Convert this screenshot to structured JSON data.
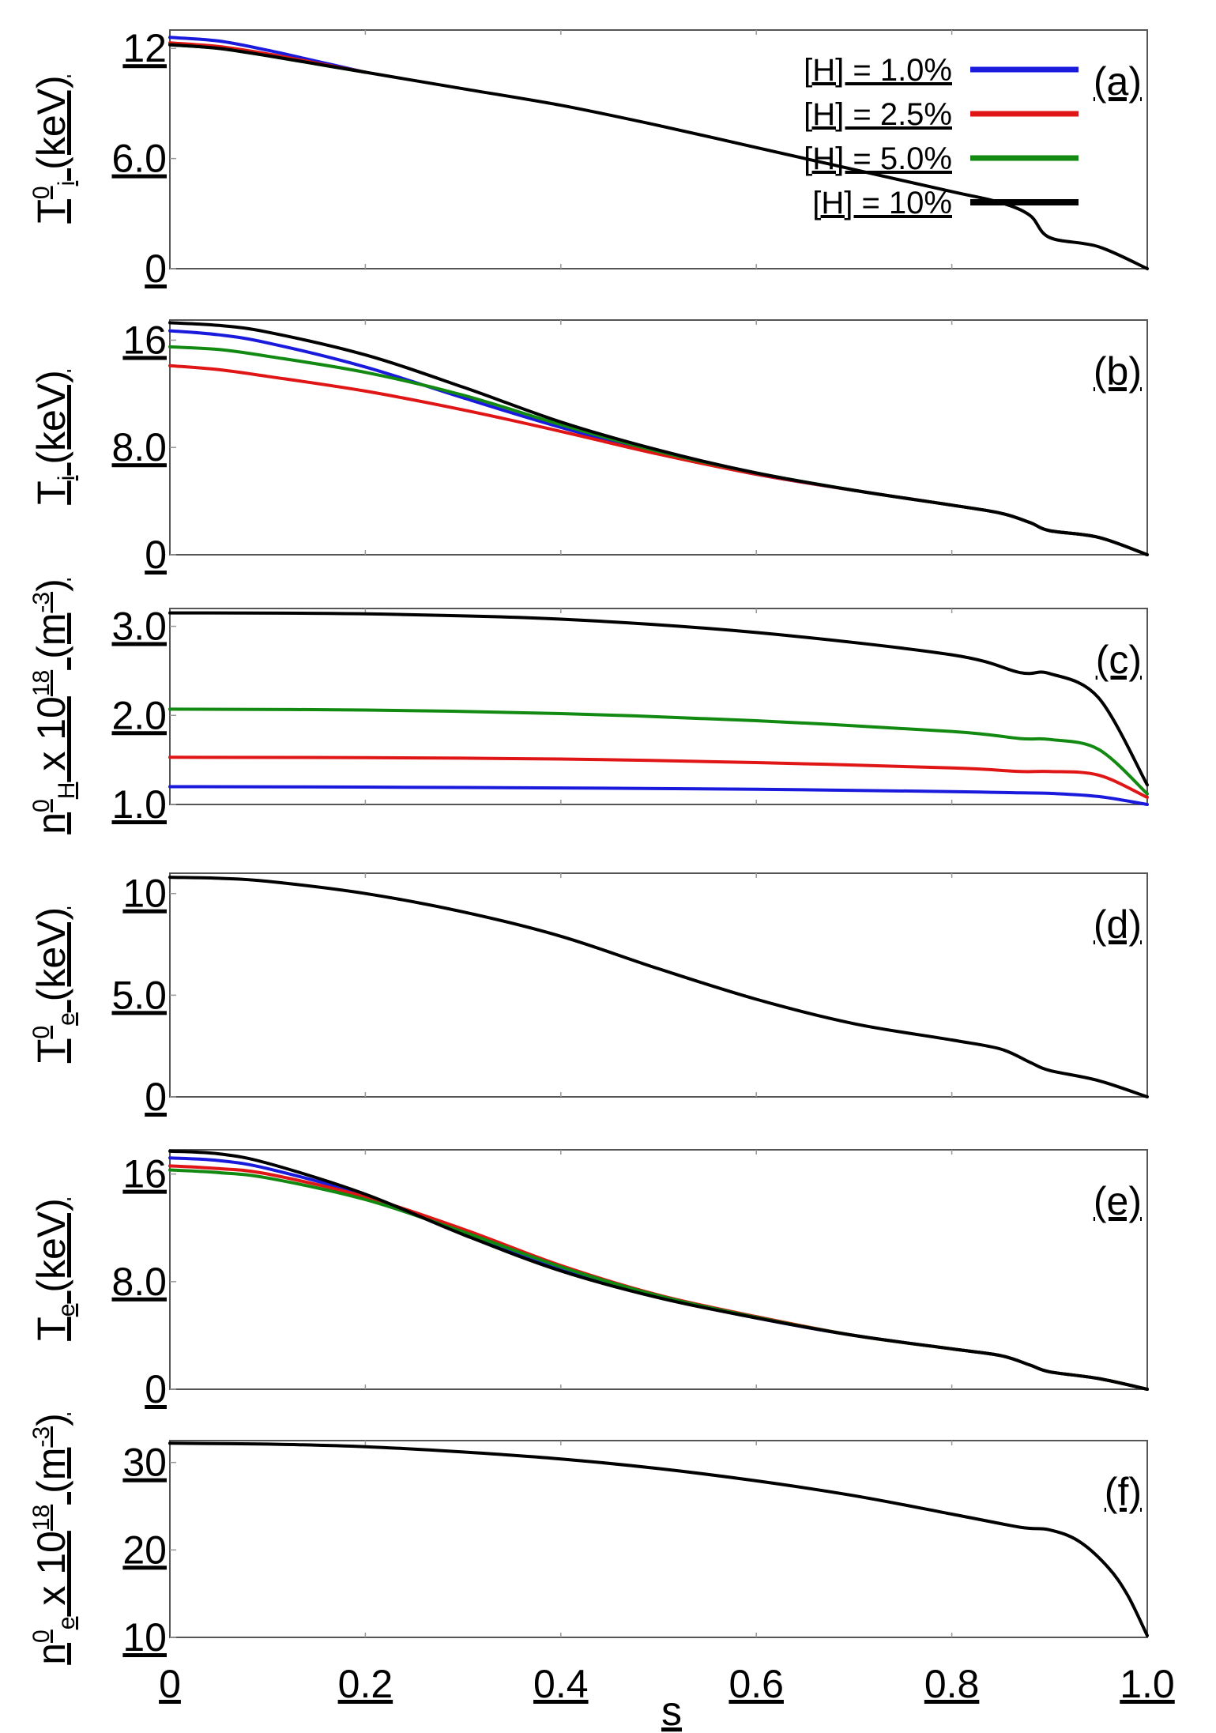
{
  "colors": {
    "blue": "#1a1add",
    "red": "#e01515",
    "green": "#128a12",
    "black": "#000000"
  },
  "x_axis": {
    "label": "s",
    "ticks": [
      "0",
      "0.2",
      "0.4",
      "0.6",
      "0.8",
      "1.0"
    ],
    "values": [
      0,
      0.2,
      0.4,
      0.6,
      0.8,
      1.0
    ]
  },
  "chart_data": [
    {
      "panel": "(a)",
      "type": "line",
      "ylabel": {
        "main": "T",
        "sup": "0",
        "sub": "i",
        "unit": " (keV)"
      },
      "xlim": [
        0,
        1
      ],
      "ylim": [
        0,
        13
      ],
      "yticks": [
        {
          "value": 12,
          "label": "12"
        },
        {
          "value": 6,
          "label": "6.0"
        },
        {
          "value": 0,
          "label": "0"
        }
      ],
      "legend": {
        "position": "top-right",
        "entries": [
          {
            "label": "[H] = 1.0%",
            "color": "blue"
          },
          {
            "label": "[H] = 2.5%",
            "color": "red"
          },
          {
            "label": "[H] = 5.0%",
            "color": "green"
          },
          {
            "label": "[H] = 10%",
            "color": "black"
          }
        ]
      },
      "series": [
        {
          "name": "[H] = 1.0%",
          "color": "blue",
          "x": [
            0,
            0.05,
            0.1,
            0.15,
            0.2
          ],
          "y": [
            12.6,
            12.4,
            11.9,
            11.3,
            10.7
          ]
        },
        {
          "name": "[H] = 2.5%",
          "color": "red",
          "x": [
            0,
            0.05,
            0.1,
            0.15,
            0.2
          ],
          "y": [
            12.3,
            12.1,
            11.7,
            11.2,
            10.7
          ]
        },
        {
          "name": "[H] = 5.0%",
          "color": "green",
          "x": [
            0,
            0.05,
            0.1,
            0.15,
            0.2
          ],
          "y": [
            12.2,
            12.0,
            11.6,
            11.15,
            10.7
          ]
        },
        {
          "name": "[H] = 10%",
          "color": "black",
          "x": [
            0,
            0.05,
            0.1,
            0.2,
            0.3,
            0.4,
            0.5,
            0.6,
            0.7,
            0.8,
            0.85,
            0.88,
            0.9,
            0.95,
            1.0
          ],
          "y": [
            12.2,
            12.0,
            11.6,
            10.7,
            9.8,
            8.9,
            7.8,
            6.6,
            5.4,
            4.2,
            3.6,
            2.9,
            1.7,
            1.2,
            0
          ]
        }
      ]
    },
    {
      "panel": "(b)",
      "type": "line",
      "ylabel": {
        "main": "T",
        "sub": "i",
        "unit": " (keV)"
      },
      "xlim": [
        0,
        1
      ],
      "ylim": [
        0,
        17.5
      ],
      "yticks": [
        {
          "value": 16,
          "label": "16"
        },
        {
          "value": 8,
          "label": "8.0"
        },
        {
          "value": 0,
          "label": "0"
        }
      ],
      "series": [
        {
          "name": "[H] = 1.0%",
          "color": "blue",
          "x": [
            0,
            0.05,
            0.1,
            0.2,
            0.3,
            0.4,
            0.5,
            0.6,
            0.7,
            0.8,
            0.85,
            0.88,
            0.9,
            0.95,
            1.0
          ],
          "y": [
            16.7,
            16.4,
            15.8,
            14.0,
            11.7,
            9.5,
            7.6,
            6.0,
            4.8,
            3.7,
            3.1,
            2.4,
            1.8,
            1.3,
            0
          ]
        },
        {
          "name": "[H] = 2.5%",
          "color": "red",
          "x": [
            0,
            0.05,
            0.1,
            0.2,
            0.3,
            0.4,
            0.5,
            0.6,
            0.7,
            0.8,
            0.85,
            0.88,
            0.9,
            0.95,
            1.0
          ],
          "y": [
            14.1,
            13.8,
            13.3,
            12.2,
            10.8,
            9.2,
            7.5,
            6.0,
            4.8,
            3.7,
            3.1,
            2.4,
            1.8,
            1.3,
            0
          ]
        },
        {
          "name": "[H] = 5.0%",
          "color": "green",
          "x": [
            0,
            0.05,
            0.1,
            0.2,
            0.3,
            0.4,
            0.5,
            0.6,
            0.7,
            0.8,
            0.85,
            0.88,
            0.9,
            0.95,
            1.0
          ],
          "y": [
            15.5,
            15.3,
            14.8,
            13.6,
            11.9,
            9.7,
            7.7,
            6.1,
            4.8,
            3.7,
            3.1,
            2.4,
            1.8,
            1.3,
            0
          ]
        },
        {
          "name": "[H] = 10%",
          "color": "black",
          "x": [
            0,
            0.05,
            0.1,
            0.2,
            0.3,
            0.4,
            0.5,
            0.6,
            0.7,
            0.8,
            0.85,
            0.88,
            0.9,
            0.95,
            1.0
          ],
          "y": [
            17.3,
            17.1,
            16.6,
            14.9,
            12.5,
            9.9,
            7.8,
            6.1,
            4.8,
            3.7,
            3.1,
            2.4,
            1.8,
            1.3,
            0
          ]
        }
      ]
    },
    {
      "panel": "(c)",
      "type": "line",
      "ylabel": {
        "main": "n",
        "sup": "0",
        "sub": "H",
        "unit": " x 10",
        "unit_sup": "18",
        "unit_tail": " (m",
        "unit_sup2": "-3",
        "unit_end": ")"
      },
      "xlim": [
        0,
        1
      ],
      "ylim": [
        1.0,
        3.2
      ],
      "yticks": [
        {
          "value": 3.0,
          "label": "3.0"
        },
        {
          "value": 2.0,
          "label": "2.0"
        },
        {
          "value": 1.0,
          "label": "1.0"
        }
      ],
      "series": [
        {
          "name": "[H] = 1.0%",
          "color": "blue",
          "x": [
            0,
            0.2,
            0.4,
            0.6,
            0.8,
            0.87,
            0.9,
            0.95,
            1.0
          ],
          "y": [
            1.2,
            1.195,
            1.185,
            1.17,
            1.145,
            1.13,
            1.125,
            1.09,
            1.0
          ]
        },
        {
          "name": "[H] = 2.5%",
          "color": "red",
          "x": [
            0,
            0.2,
            0.4,
            0.6,
            0.8,
            0.87,
            0.9,
            0.95,
            1.0
          ],
          "y": [
            1.53,
            1.525,
            1.51,
            1.47,
            1.41,
            1.37,
            1.37,
            1.33,
            1.08
          ]
        },
        {
          "name": "[H] = 5.0%",
          "color": "green",
          "x": [
            0,
            0.2,
            0.4,
            0.6,
            0.8,
            0.87,
            0.9,
            0.95,
            1.0
          ],
          "y": [
            2.07,
            2.06,
            2.02,
            1.94,
            1.82,
            1.74,
            1.73,
            1.62,
            1.12
          ]
        },
        {
          "name": "[H] = 10%",
          "color": "black",
          "x": [
            0,
            0.2,
            0.4,
            0.6,
            0.8,
            0.87,
            0.9,
            0.95,
            1.0
          ],
          "y": [
            3.15,
            3.14,
            3.08,
            2.93,
            2.68,
            2.48,
            2.47,
            2.2,
            1.22
          ]
        }
      ]
    },
    {
      "panel": "(d)",
      "type": "line",
      "ylabel": {
        "main": "T",
        "sup": "0",
        "sub": "e",
        "unit": " (keV)"
      },
      "xlim": [
        0,
        1
      ],
      "ylim": [
        0,
        11
      ],
      "yticks": [
        {
          "value": 10,
          "label": "10"
        },
        {
          "value": 5,
          "label": "5.0"
        },
        {
          "value": 0,
          "label": "0"
        }
      ],
      "series": [
        {
          "name": "[H] = 10%",
          "color": "black",
          "x": [
            0,
            0.05,
            0.1,
            0.2,
            0.3,
            0.4,
            0.5,
            0.6,
            0.7,
            0.8,
            0.85,
            0.88,
            0.9,
            0.95,
            1.0
          ],
          "y": [
            10.8,
            10.75,
            10.6,
            10.0,
            9.1,
            7.9,
            6.3,
            4.8,
            3.6,
            2.8,
            2.35,
            1.7,
            1.3,
            0.8,
            0
          ]
        }
      ]
    },
    {
      "panel": "(e)",
      "type": "line",
      "ylabel": {
        "main": "T",
        "sub": "e",
        "unit": " (keV)"
      },
      "xlim": [
        0,
        1
      ],
      "ylim": [
        0,
        17.8
      ],
      "yticks": [
        {
          "value": 16,
          "label": "16"
        },
        {
          "value": 8,
          "label": "8.0"
        },
        {
          "value": 0,
          "label": "0"
        }
      ],
      "series": [
        {
          "name": "[H] = 1.0%",
          "color": "blue",
          "x": [
            0,
            0.05,
            0.1,
            0.2,
            0.3,
            0.4,
            0.5,
            0.6,
            0.7,
            0.8,
            0.85,
            0.88,
            0.9,
            0.95,
            1.0
          ],
          "y": [
            17.2,
            17.0,
            16.4,
            14.4,
            11.6,
            8.9,
            6.9,
            5.3,
            4.0,
            3.0,
            2.5,
            1.8,
            1.3,
            0.8,
            0
          ]
        },
        {
          "name": "[H] = 2.5%",
          "color": "red",
          "x": [
            0,
            0.05,
            0.1,
            0.2,
            0.3,
            0.4,
            0.5,
            0.6,
            0.7,
            0.8,
            0.85,
            0.88,
            0.9,
            0.95,
            1.0
          ],
          "y": [
            16.6,
            16.4,
            16.0,
            14.3,
            11.9,
            9.2,
            7.0,
            5.4,
            4.0,
            3.0,
            2.5,
            1.8,
            1.3,
            0.8,
            0
          ]
        },
        {
          "name": "[H] = 5.0%",
          "color": "green",
          "x": [
            0,
            0.05,
            0.1,
            0.2,
            0.3,
            0.4,
            0.5,
            0.6,
            0.7,
            0.8,
            0.85,
            0.88,
            0.9,
            0.95,
            1.0
          ],
          "y": [
            16.3,
            16.1,
            15.7,
            14.1,
            11.7,
            9.1,
            6.95,
            5.35,
            4.0,
            3.0,
            2.5,
            1.8,
            1.3,
            0.8,
            0
          ]
        },
        {
          "name": "[H] = 10%",
          "color": "black",
          "x": [
            0,
            0.05,
            0.1,
            0.2,
            0.3,
            0.4,
            0.5,
            0.6,
            0.7,
            0.8,
            0.85,
            0.88,
            0.9,
            0.95,
            1.0
          ],
          "y": [
            17.7,
            17.5,
            16.8,
            14.5,
            11.5,
            8.8,
            6.8,
            5.3,
            4.0,
            3.0,
            2.5,
            1.8,
            1.3,
            0.8,
            0
          ]
        }
      ]
    },
    {
      "panel": "(f)",
      "type": "line",
      "ylabel": {
        "main": "n",
        "sup": "0",
        "sub": "e",
        "unit": " x 10",
        "unit_sup": "18",
        "unit_tail": " (m",
        "unit_sup2": "-3",
        "unit_end": ")"
      },
      "xlim": [
        0,
        1
      ],
      "ylim": [
        10,
        32.5
      ],
      "yticks": [
        {
          "value": 30,
          "label": "30"
        },
        {
          "value": 20,
          "label": "20"
        },
        {
          "value": 10,
          "label": "10"
        }
      ],
      "series": [
        {
          "name": "[H] = 10%",
          "color": "black",
          "x": [
            0,
            0.1,
            0.2,
            0.3,
            0.4,
            0.5,
            0.6,
            0.7,
            0.8,
            0.87,
            0.9,
            0.93,
            0.96,
            0.98,
            1.0
          ],
          "y": [
            32.2,
            32.1,
            31.8,
            31.2,
            30.4,
            29.3,
            27.9,
            26.2,
            24.1,
            22.6,
            22.3,
            21.0,
            18.0,
            14.8,
            10.2
          ]
        }
      ]
    }
  ]
}
